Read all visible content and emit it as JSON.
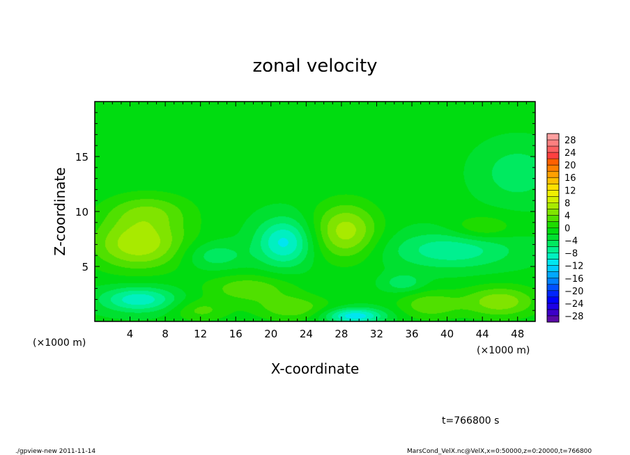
{
  "chart_data": {
    "type": "heatmap",
    "title": "zonal velocity",
    "xlabel": "X-coordinate",
    "ylabel": "Z-coordinate",
    "x_unit_label": "(×1000 m)",
    "y_unit_label": "(×1000 m)",
    "xlim": [
      0,
      50
    ],
    "ylim": [
      0,
      20
    ],
    "x_ticks": [
      4,
      8,
      12,
      16,
      20,
      24,
      28,
      32,
      36,
      40,
      44,
      48
    ],
    "y_ticks": [
      5,
      10,
      15
    ],
    "colorbar": {
      "levels": [
        -30,
        -28,
        -26,
        -24,
        -22,
        -20,
        -18,
        -16,
        -14,
        -12,
        -10,
        -8,
        -6,
        -4,
        -2,
        0,
        2,
        4,
        6,
        8,
        10,
        12,
        14,
        16,
        18,
        20,
        22,
        24,
        26,
        28,
        30
      ],
      "labels": [
        "28",
        "24",
        "20",
        "16",
        "12",
        "8",
        "4",
        "0",
        "−4",
        "−8",
        "−12",
        "−16",
        "−20",
        "−24",
        "−28"
      ],
      "label_values": [
        28,
        24,
        20,
        16,
        12,
        8,
        4,
        0,
        -4,
        -8,
        -12,
        -16,
        -20,
        -24,
        -28
      ],
      "colors": [
        "#5a0aa6",
        "#3c00c8",
        "#1e00e6",
        "#0000ff",
        "#0024ff",
        "#0050ff",
        "#0080ff",
        "#00a8ff",
        "#00ccff",
        "#00e6f0",
        "#00f0c0",
        "#00f090",
        "#00ea60",
        "#00e030",
        "#00dc10",
        "#1edc00",
        "#50e000",
        "#80e400",
        "#a8ea00",
        "#d2f000",
        "#f0f000",
        "#ffe000",
        "#ffc000",
        "#ffa000",
        "#ff8000",
        "#ff6000",
        "#ff4040",
        "#ff6060",
        "#ff8080",
        "#ffa0a0"
      ]
    },
    "field": {
      "base": -1.5,
      "blobs": [
        {
          "x": 5,
          "z": 7,
          "sx": 3.8,
          "sz": 1.6,
          "amp": 9
        },
        {
          "x": 6,
          "z": 10,
          "sx": 3.5,
          "sz": 1.2,
          "amp": 5
        },
        {
          "x": 28.5,
          "z": 8.2,
          "sx": 2.6,
          "sz": 1.8,
          "amp": 8.5
        },
        {
          "x": 17.5,
          "z": 3,
          "sx": 3.5,
          "sz": 0.9,
          "amp": 5
        },
        {
          "x": 22.5,
          "z": 1.2,
          "sx": 3,
          "sz": 0.8,
          "amp": 5
        },
        {
          "x": 12,
          "z": 1,
          "sx": 2.2,
          "sz": 0.7,
          "amp": 4
        },
        {
          "x": 38,
          "z": 1.5,
          "sx": 2.5,
          "sz": 0.9,
          "amp": 5
        },
        {
          "x": 46,
          "z": 1.8,
          "sx": 3,
          "sz": 1,
          "amp": 7
        },
        {
          "x": 44,
          "z": 8.5,
          "sx": 2.5,
          "sz": 0.8,
          "amp": 4
        },
        {
          "x": 21.5,
          "z": 7.2,
          "sx": 2.2,
          "sz": 1.5,
          "amp": -9
        },
        {
          "x": 5,
          "z": 2,
          "sx": 3,
          "sz": 0.8,
          "amp": -8
        },
        {
          "x": 29.5,
          "z": 0.5,
          "sx": 2.4,
          "sz": 0.5,
          "amp": -10
        },
        {
          "x": 40.5,
          "z": 6.5,
          "sx": 5,
          "sz": 1.2,
          "amp": -6
        },
        {
          "x": 48,
          "z": 13.5,
          "sx": 3,
          "sz": 1.8,
          "amp": -4
        },
        {
          "x": 13.5,
          "z": 6,
          "sx": 2.5,
          "sz": 0.9,
          "amp": -4
        },
        {
          "x": 35,
          "z": 3.5,
          "sx": 1.6,
          "sz": 0.6,
          "amp": -4
        }
      ]
    }
  },
  "time_label": "t=766800 s",
  "footer": {
    "left": "./gpview-new  2011-11-14",
    "right": "MarsCond_VelX.nc@VelX,x=0:50000,z=0:20000,t=766800"
  }
}
